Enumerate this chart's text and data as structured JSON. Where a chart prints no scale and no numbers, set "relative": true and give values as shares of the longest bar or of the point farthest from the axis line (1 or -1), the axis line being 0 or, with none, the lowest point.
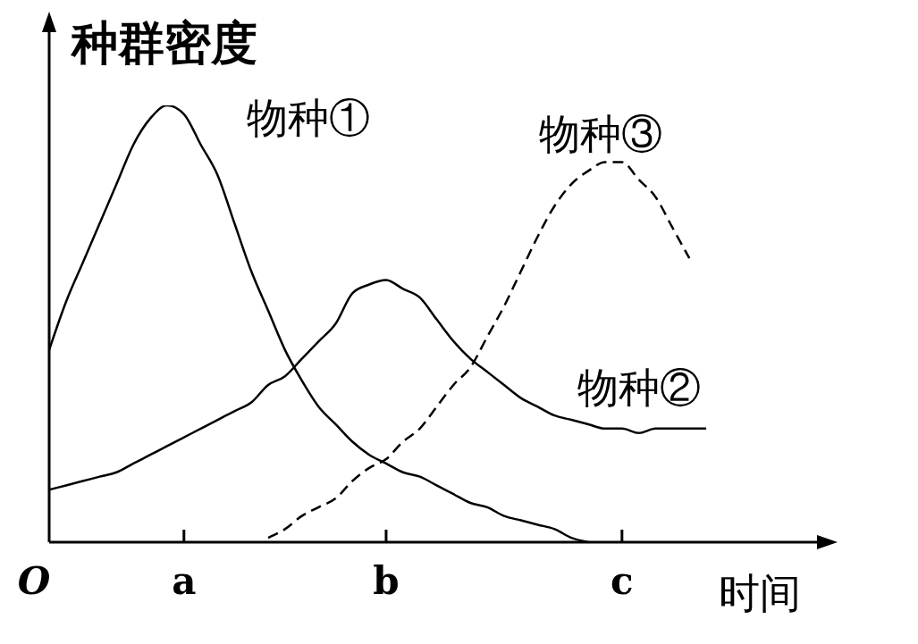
{
  "chart_data": {
    "type": "line",
    "ylabel": "种群密度",
    "xlabel": "时间",
    "relative": true,
    "marker": "none",
    "line_style": "solid",
    "categories": [
      "O",
      null,
      null,
      null,
      null,
      null,
      null,
      null,
      "a",
      null,
      null,
      null,
      null,
      null,
      null,
      null,
      null,
      null,
      null,
      null,
      "b",
      null,
      null,
      null,
      null,
      null,
      null,
      null,
      null,
      null,
      null,
      null,
      null,
      null,
      "c",
      null,
      null,
      null,
      null,
      null,
      null,
      null,
      null,
      null,
      null,
      null,
      null
    ],
    "series": [
      {
        "name": "物种①",
        "color": "#000000",
        "values": [
          0.44,
          0.55,
          0.64,
          0.73,
          0.82,
          0.91,
          0.97,
          1.0,
          0.98,
          0.91,
          0.84,
          0.73,
          0.62,
          0.53,
          0.44,
          0.37,
          0.31,
          0.27,
          0.23,
          0.2,
          0.18,
          0.16,
          0.15,
          0.13,
          0.11,
          0.09,
          0.08,
          0.06,
          0.05,
          0.04,
          0.03,
          0.01,
          0,
          null,
          null,
          null,
          null,
          null,
          null,
          null,
          null,
          null,
          null,
          null,
          null,
          null,
          null
        ]
      },
      {
        "name": "物种②",
        "color": "#000000",
        "values": [
          0.12,
          0.13,
          0.14,
          0.15,
          0.16,
          0.18,
          0.2,
          0.22,
          0.24,
          0.26,
          0.28,
          0.3,
          0.32,
          0.36,
          0.38,
          0.42,
          0.46,
          0.5,
          0.57,
          0.59,
          0.6,
          0.58,
          0.56,
          0.51,
          0.46,
          0.42,
          0.39,
          0.36,
          0.33,
          0.31,
          0.29,
          0.28,
          0.27,
          0.26,
          0.26,
          0.25,
          0.26,
          0.26,
          0.26,
          0.26,
          null,
          null,
          null,
          null,
          null,
          null,
          null
        ]
      },
      {
        "name": "物种③",
        "color": "#000000",
        "line_style": "dashed",
        "values": [
          null,
          null,
          null,
          null,
          null,
          null,
          null,
          null,
          null,
          null,
          null,
          null,
          null,
          0.01,
          0.03,
          0.06,
          0.08,
          0.1,
          0.14,
          0.17,
          0.19,
          0.23,
          0.26,
          0.31,
          0.36,
          0.4,
          0.47,
          0.54,
          0.62,
          0.7,
          0.77,
          0.82,
          0.85,
          0.87,
          0.87,
          0.83,
          0.79,
          0.72,
          0.65,
          null,
          null,
          null,
          null,
          null,
          null,
          null,
          null
        ]
      }
    ]
  }
}
